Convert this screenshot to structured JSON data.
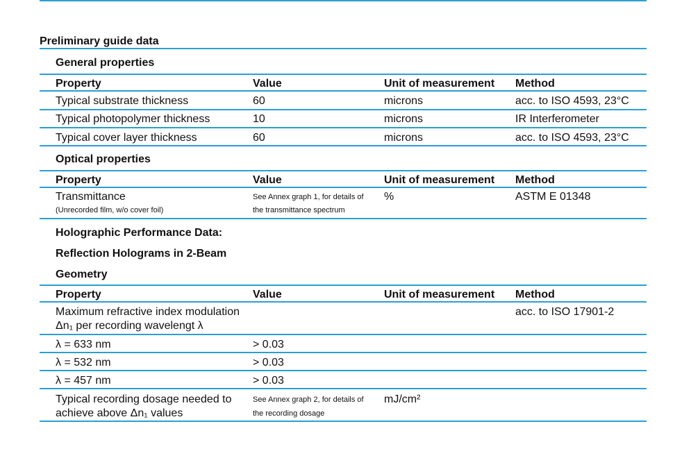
{
  "section_title": "Preliminary guide data",
  "general": {
    "heading": "General properties",
    "headers": [
      "Property",
      "Value",
      "Unit of measurement",
      "Method"
    ],
    "rows": [
      [
        "Typical substrate thickness",
        "60",
        "microns",
        "acc. to ISO 4593, 23°C"
      ],
      [
        "Typical photopolymer thickness",
        "10",
        "microns",
        "IR Interferometer"
      ],
      [
        "Typical cover layer thickness",
        "60",
        "microns",
        "acc. to ISO 4593, 23°C"
      ]
    ]
  },
  "optical": {
    "heading": "Optical properties",
    "headers": [
      "Property",
      "Value",
      "Unit of measurement",
      "Method"
    ],
    "row": {
      "property": "Transmittance",
      "property_note": "(Unrecorded film, w/o cover foil)",
      "value_line1": "See Annex graph 1, for details of",
      "value_line2": "the transmittance spectrum",
      "unit": "%",
      "method": "ASTM E 01348"
    }
  },
  "holographic": {
    "heading1": "Holographic Performance Data:",
    "heading2": "Reflection Holograms in 2-Beam",
    "heading3": "Geometry",
    "headers": [
      "Property",
      "Value",
      "Unit of measurement",
      "Method"
    ],
    "main_row": {
      "property_line1": "Maximum refractive index modulation",
      "property_line2": "Δn₁ per recording wavelengt λ",
      "method": "acc. to ISO 17901-2"
    },
    "wavelength_rows": [
      [
        "λ = 633 nm",
        "> 0.03"
      ],
      [
        "λ = 532 nm",
        "> 0.03"
      ],
      [
        "λ = 457 nm",
        "> 0.03"
      ]
    ],
    "dosage_row": {
      "property_line1": "Typical recording dosage needed to",
      "property_line2": "achieve above Δn₁ values",
      "value_line1": "See Annex graph 2, for details of",
      "value_line2": "the recording dosage",
      "unit": "mJ/cm²"
    }
  },
  "colors": {
    "rule": "#2a9fd0",
    "text": "#111111"
  }
}
